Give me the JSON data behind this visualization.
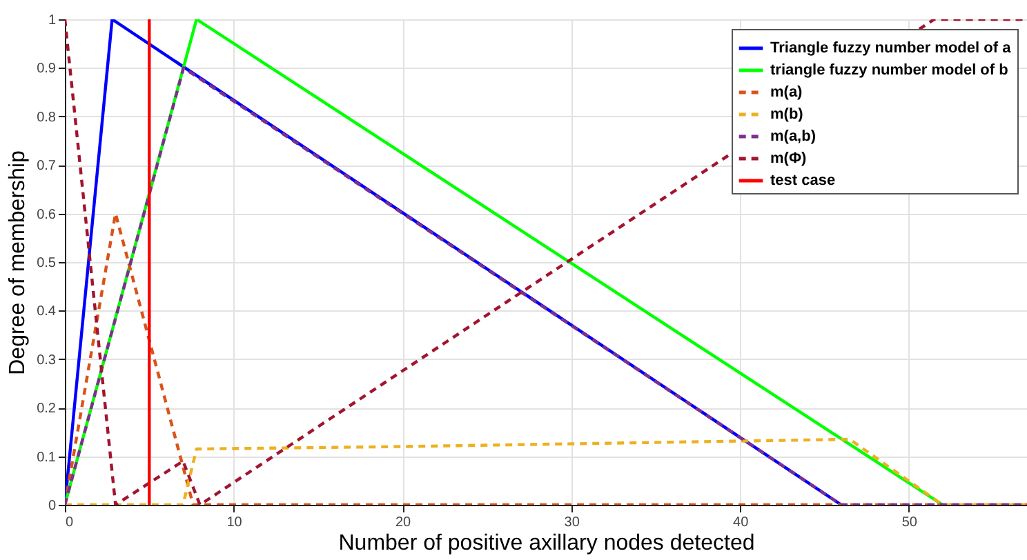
{
  "chart_data": {
    "type": "line",
    "xlabel": "Number of positive axillary nodes detected",
    "ylabel": "Degree of membership",
    "xlim": [
      0,
      57
    ],
    "ylim": [
      0,
      1
    ],
    "xticks": [
      0,
      10,
      20,
      30,
      40,
      50
    ],
    "yticks": [
      0,
      0.1,
      0.2,
      0.3,
      0.4,
      0.5,
      0.6,
      0.7,
      0.8,
      0.9,
      1
    ],
    "grid": true,
    "legend": "top right",
    "marker": "none",
    "series": [
      {
        "name": "Triangle fuzzy number model of a",
        "color": "#0000ff",
        "line_style": "solid",
        "x": [
          0,
          2.8,
          46
        ],
        "values": [
          0,
          1,
          0
        ]
      },
      {
        "name": "triangle fuzzy number model of b",
        "color": "#00ff00",
        "line_style": "solid",
        "x": [
          0,
          7.8,
          52
        ],
        "values": [
          0,
          1,
          0
        ]
      },
      {
        "name": "m(a)",
        "color": "#d95319",
        "line_style": "dashed",
        "x": [
          0,
          3,
          7.6,
          57
        ],
        "values": [
          0,
          0.6,
          0,
          0
        ]
      },
      {
        "name": "m(b)",
        "color": "#edb120",
        "line_style": "dashed",
        "x": [
          0,
          7,
          7.8,
          20,
          46.5,
          52,
          57
        ],
        "values": [
          0,
          0,
          0.115,
          0.12,
          0.135,
          0,
          0
        ]
      },
      {
        "name": "m(a,b)",
        "color": "#7e2f8e",
        "line_style": "dashed",
        "x": [
          0,
          7.03,
          46,
          57
        ],
        "values": [
          0,
          0.9,
          0,
          0
        ]
      },
      {
        "name": "m(Φ)",
        "color": "#a2142f",
        "line_style": "dashed",
        "x": [
          0,
          3,
          7,
          8,
          51.5,
          57
        ],
        "values": [
          1,
          0,
          0.09,
          0,
          1,
          1
        ]
      },
      {
        "name": "test case",
        "color": "#ff0000",
        "line_style": "solid",
        "x": [
          5,
          5
        ],
        "values": [
          0,
          1
        ]
      }
    ]
  }
}
